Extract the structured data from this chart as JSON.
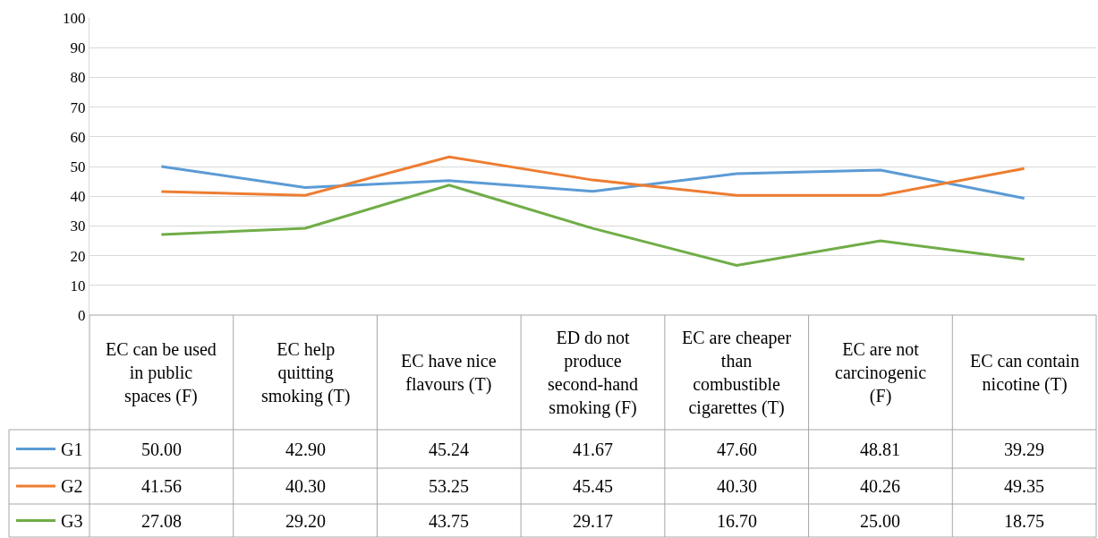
{
  "chart_data": {
    "type": "line",
    "categories": [
      "EC can be used in public spaces (F)",
      "EC help quitting smoking (T)",
      "EC have nice flavours (T)",
      "ED do not produce second-hand smoking (F)",
      "EC are cheaper than combustible cigarettes (T)",
      "EC are not carcinogenic (F)",
      "EC can contain nicotine (T)"
    ],
    "series": [
      {
        "name": "G1",
        "color": "#5b9bd5",
        "values": [
          50.0,
          42.9,
          45.24,
          41.67,
          47.6,
          48.81,
          39.29
        ],
        "value_labels": [
          "50.00",
          "42.90",
          "45.24",
          "41.67",
          "47.60",
          "48.81",
          "39.29"
        ]
      },
      {
        "name": "G2",
        "color": "#ed7d31",
        "values": [
          41.56,
          40.3,
          53.25,
          45.45,
          40.3,
          40.26,
          49.35
        ],
        "value_labels": [
          "41.56",
          "40.30",
          "53.25",
          "45.45",
          "40.30",
          "40.26",
          "49.35"
        ]
      },
      {
        "name": "G3",
        "color": "#70ad47",
        "values": [
          27.08,
          29.2,
          43.75,
          29.17,
          16.7,
          25.0,
          18.75
        ],
        "value_labels": [
          "27.08",
          "29.20",
          "43.75",
          "29.17",
          "16.70",
          "25.00",
          "18.75"
        ]
      }
    ],
    "ylim": [
      0,
      100
    ],
    "yticks": [
      0,
      10,
      20,
      30,
      40,
      50,
      60,
      70,
      80,
      90,
      100
    ],
    "grid": "y",
    "legend": "bottom left"
  }
}
